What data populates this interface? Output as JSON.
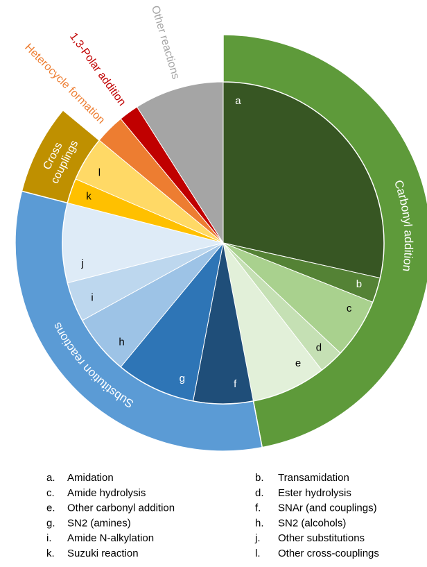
{
  "chart_data": {
    "type": "sunburst",
    "groups": [
      {
        "name": "Carbonyl addition",
        "color": "#5e9a3a",
        "band": true,
        "slices": [
          {
            "label": "a",
            "value": 28.5,
            "color": "#375623"
          },
          {
            "label": "b",
            "value": 2.5,
            "color": "#548235"
          },
          {
            "label": "c",
            "value": 6,
            "color": "#a9d18e"
          },
          {
            "label": "d",
            "value": 2.5,
            "color": "#c5e0b4"
          },
          {
            "label": "e",
            "value": 7.5,
            "color": "#e2f0d9"
          }
        ]
      },
      {
        "name": "Substitution reactions",
        "color": "#5b9bd5",
        "band": true,
        "slices": [
          {
            "label": "f",
            "value": 6,
            "color": "#1f4e79"
          },
          {
            "label": "g",
            "value": 8,
            "color": "#2e75b6"
          },
          {
            "label": "h",
            "value": 6,
            "color": "#9dc3e6"
          },
          {
            "label": "i",
            "value": 4,
            "color": "#bdd7ee"
          },
          {
            "label": "j",
            "value": 8,
            "color": "#deebf7"
          }
        ]
      },
      {
        "name": "Cross couplings",
        "color": "#bf9000",
        "band": true,
        "slices": [
          {
            "label": "k",
            "value": 2.5,
            "color": "#ffc000"
          },
          {
            "label": "l",
            "value": 4.5,
            "color": "#ffd966"
          }
        ]
      },
      {
        "name": "Heterocycle formation",
        "color": "#ed7d31",
        "band": false,
        "slices": [
          {
            "value": 3,
            "color": "#ed7d31"
          }
        ]
      },
      {
        "name": "1,3-Polar addition",
        "color": "#c00000",
        "band": false,
        "slices": [
          {
            "value": 2,
            "color": "#c00000"
          }
        ]
      },
      {
        "name": "Other reactions",
        "color": "#a5a5a5",
        "band": false,
        "slices": [
          {
            "value": 9,
            "color": "#a5a5a5"
          }
        ]
      }
    ],
    "legend": [
      {
        "key": "a.",
        "text": "Amidation"
      },
      {
        "key": "b.",
        "text": "Transamidation"
      },
      {
        "key": "c.",
        "text": "Amide hydrolysis"
      },
      {
        "key": "d.",
        "text": "Ester hydrolysis"
      },
      {
        "key": "e.",
        "text": "Other carbonyl addition"
      },
      {
        "key": "f.",
        "text": "SNAr (and couplings)"
      },
      {
        "key": "g.",
        "text": "SN2 (amines)"
      },
      {
        "key": "h.",
        "text": "SN2 (alcohols)"
      },
      {
        "key": "i.",
        "text": "Amide N-alkylation"
      },
      {
        "key": "j.",
        "text": "Other substitutions"
      },
      {
        "key": "k.",
        "text": "Suzuki reaction"
      },
      {
        "key": "l.",
        "text": "Other cross-couplings"
      }
    ]
  }
}
